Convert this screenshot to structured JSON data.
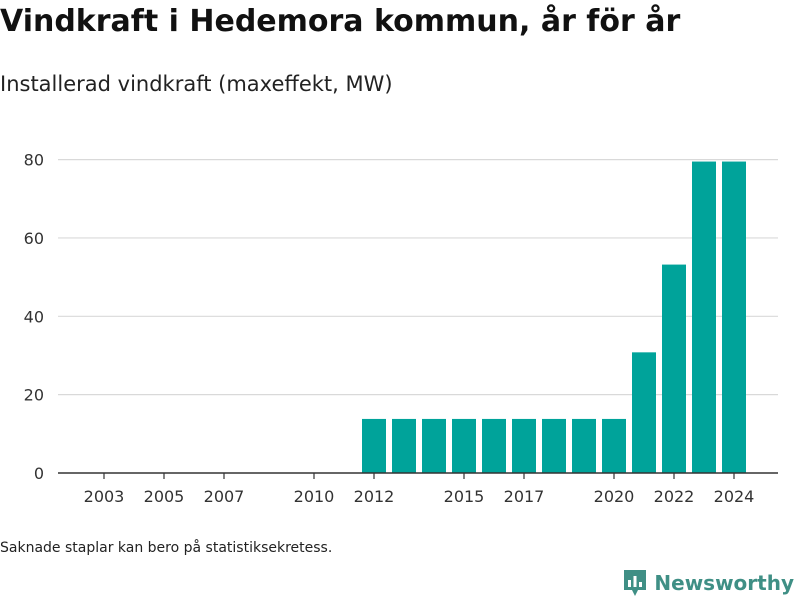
{
  "title": "Vindkraft i Hedemora kommun, år för år",
  "subtitle": "Installerad vindkraft (maxeffekt, MW)",
  "note": "Saknade staplar kan bero på statistiksekretess.",
  "brand": "Newsworthy",
  "colors": {
    "bar": "#00a39a",
    "grid": "#d9d9d9",
    "axis": "#333333",
    "brand": "#3f8f85"
  },
  "chart_data": {
    "type": "bar",
    "title": "Vindkraft i Hedemora kommun, år för år",
    "subtitle": "Installerad vindkraft (maxeffekt, MW)",
    "xlabel": "",
    "ylabel": "",
    "categories": [
      2003,
      2004,
      2005,
      2006,
      2007,
      2008,
      2009,
      2010,
      2011,
      2012,
      2013,
      2014,
      2015,
      2016,
      2017,
      2018,
      2019,
      2020,
      2021,
      2022,
      2023,
      2024
    ],
    "values": [
      0,
      0,
      0,
      0,
      0,
      0,
      0,
      0,
      0,
      13.8,
      13.8,
      13.8,
      13.8,
      13.8,
      13.8,
      13.8,
      13.8,
      13.8,
      30.8,
      53.2,
      79.5,
      79.5
    ],
    "x_tick_labels": [
      "2003",
      "2005",
      "2007",
      "2010",
      "2012",
      "2015",
      "2017",
      "2020",
      "2022",
      "2024"
    ],
    "y_ticks": [
      0,
      20,
      40,
      60,
      80
    ],
    "ylim": [
      0,
      85
    ],
    "grid": true,
    "legend": "none"
  }
}
